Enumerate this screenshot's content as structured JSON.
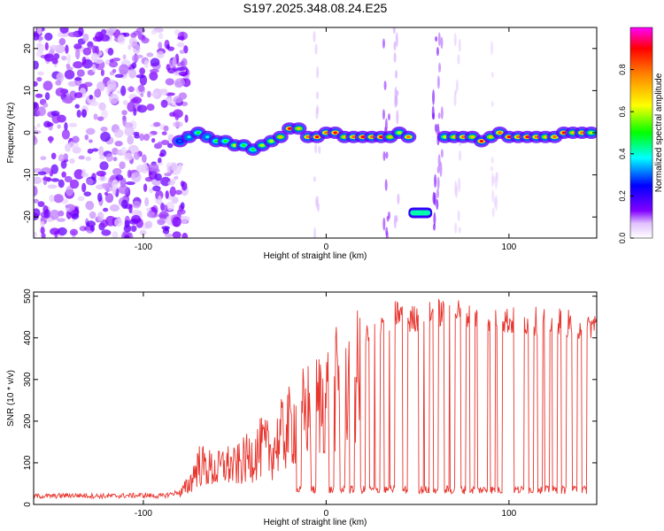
{
  "title": "S197.2025.348.08.24.E25",
  "chart_data": [
    {
      "type": "heatmap",
      "xlabel": "Height of straight line (km)",
      "ylabel": "Frequency (Hz)",
      "xlim": [
        -160,
        148
      ],
      "ylim": [
        -25,
        25
      ],
      "xticks": [
        -100,
        0,
        100
      ],
      "yticks": [
        -20,
        -10,
        0,
        10,
        20
      ],
      "colorbar": {
        "label": "Normalized spectral amplitude",
        "range": [
          0,
          1
        ],
        "ticks": [
          "0.0",
          "0.2",
          "0.4",
          "0.6",
          "0.8"
        ],
        "colormap": [
          "#ffffff",
          "#8000ff",
          "#0000ff",
          "#00ffff",
          "#00ff00",
          "#ffff00",
          "#ff8000",
          "#ff0000",
          "#ff00ff"
        ]
      },
      "ridge": {
        "x": [
          -80,
          -75,
          -70,
          -65,
          -60,
          -55,
          -50,
          -45,
          -40,
          -35,
          -30,
          -25,
          -20,
          -15,
          -10,
          -5,
          0,
          5,
          10,
          15,
          20,
          25,
          30,
          35,
          40,
          45,
          65,
          70,
          75,
          80,
          85,
          90,
          95,
          100,
          105,
          110,
          115,
          120,
          125,
          130,
          135,
          140,
          145
        ],
        "freq": [
          -2,
          -1,
          0,
          -1,
          -2,
          -2,
          -3,
          -3,
          -4,
          -3,
          -2,
          -1,
          1,
          1,
          -1,
          -1,
          0,
          0,
          -1,
          -1,
          -1,
          -1,
          -1,
          -1,
          0,
          -1,
          -1,
          -1,
          -1,
          -1,
          -2,
          -1,
          0,
          -1,
          -1,
          -1,
          -1,
          -1,
          -1,
          0,
          0,
          0,
          0
        ],
        "amplitude": [
          0.3,
          0.4,
          0.5,
          0.4,
          0.5,
          0.5,
          0.6,
          0.5,
          0.5,
          0.6,
          0.6,
          0.7,
          0.9,
          0.7,
          0.8,
          0.9,
          0.8,
          0.9,
          0.7,
          0.8,
          0.9,
          0.8,
          0.9,
          0.7,
          0.6,
          0.8,
          0.6,
          0.7,
          0.8,
          0.7,
          0.9,
          0.7,
          0.8,
          0.9,
          0.8,
          0.9,
          0.8,
          0.7,
          0.8,
          0.9,
          0.7,
          0.8,
          0.6
        ]
      },
      "side_feature": {
        "x": [
          45,
          58
        ],
        "freq": -19,
        "amplitude": 0.7
      },
      "noise_region": {
        "x": [
          -160,
          -80
        ]
      }
    },
    {
      "type": "line",
      "xlabel": "Height of straight line (km)",
      "ylabel": "SNR (10 * v/v)",
      "xlim": [
        -160,
        148
      ],
      "ylim": [
        0,
        510
      ],
      "xticks": [
        -100,
        0,
        100
      ],
      "yticks": [
        0,
        100,
        200,
        300,
        400,
        500
      ],
      "series": [
        {
          "name": "SNR",
          "color": "#e8352e",
          "x": [
            -160,
            -150,
            -140,
            -130,
            -120,
            -110,
            -100,
            -90,
            -80,
            -75,
            -70,
            -65,
            -60,
            -55,
            -50,
            -45,
            -40,
            -35,
            -30,
            -25,
            -20,
            -15,
            -10,
            -5,
            0,
            5,
            10,
            15,
            20,
            25,
            30,
            35,
            40,
            45,
            50,
            55,
            60,
            65,
            70,
            75,
            80,
            85,
            90,
            95,
            100,
            105,
            110,
            115,
            120,
            125,
            130,
            135,
            140,
            145,
            148
          ],
          "values": [
            20,
            20,
            22,
            21,
            20,
            21,
            22,
            20,
            30,
            60,
            120,
            110,
            100,
            120,
            110,
            130,
            150,
            170,
            160,
            200,
            230,
            260,
            280,
            300,
            320,
            340,
            360,
            370,
            390,
            420,
            440,
            450,
            460,
            440,
            450,
            450,
            460,
            460,
            470,
            450,
            450,
            450,
            450,
            450,
            440,
            440,
            440,
            440,
            440,
            440,
            440,
            430,
            430,
            430,
            430
          ]
        }
      ],
      "dropouts": {
        "x": [
          -15,
          -7,
          3,
          9,
          14,
          20,
          25,
          28,
          33,
          36,
          43,
          52,
          55,
          60,
          66,
          69,
          75,
          80,
          84,
          87,
          91,
          95,
          104,
          107,
          112,
          117,
          121,
          125,
          130,
          136,
          141
        ],
        "level": 35
      }
    }
  ]
}
